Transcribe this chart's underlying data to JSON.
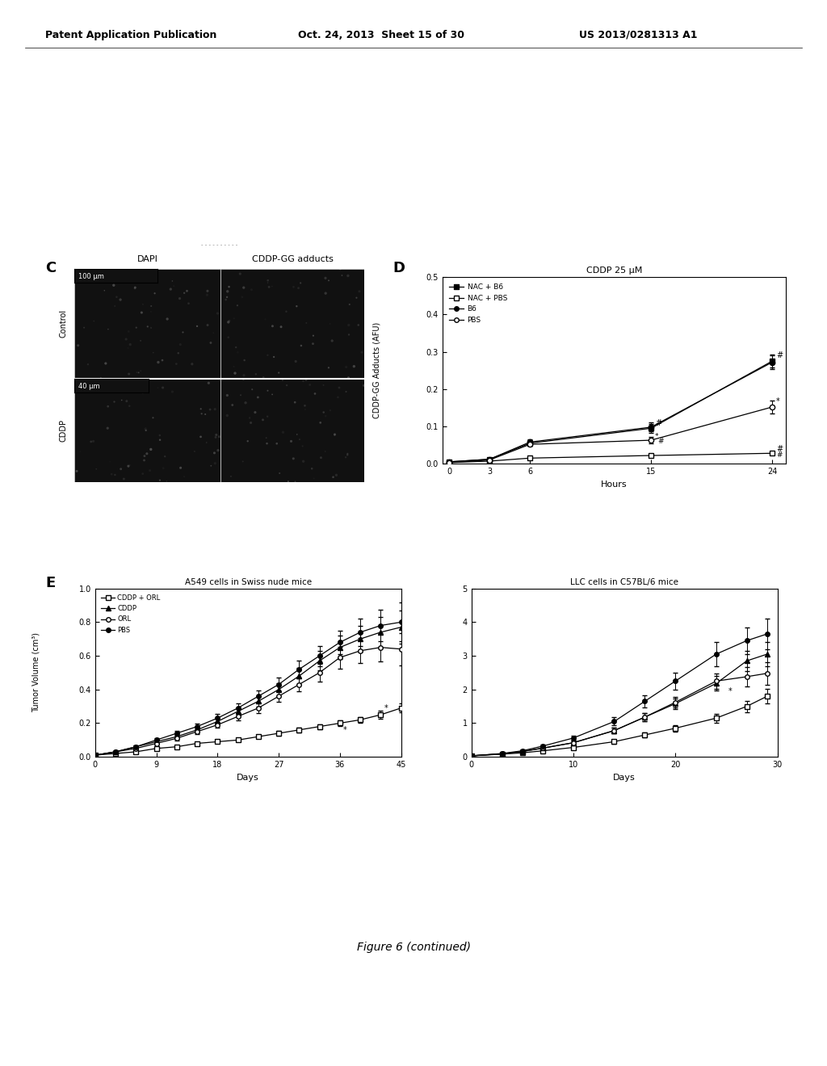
{
  "header_left": "Patent Application Publication",
  "header_mid": "Oct. 24, 2013  Sheet 15 of 30",
  "header_right": "US 2013/0281313 A1",
  "panel_D": {
    "title": "CDDP 25 μM",
    "xlabel": "Hours",
    "ylabel": "CDDP-GG Adducts (AFU)",
    "xlim": [
      -0.5,
      25
    ],
    "ylim": [
      0,
      0.5
    ],
    "xticks": [
      0,
      3,
      6,
      15,
      24
    ],
    "yticks": [
      0.0,
      0.1,
      0.2,
      0.3,
      0.4,
      0.5
    ],
    "series": {
      "NAC + B6": {
        "x": [
          0,
          3,
          6,
          15,
          24
        ],
        "y": [
          0.005,
          0.012,
          0.055,
          0.095,
          0.275
        ],
        "yerr": [
          0.002,
          0.003,
          0.008,
          0.012,
          0.018
        ],
        "marker": "s",
        "fillstyle": "full"
      },
      "NAC + PBS": {
        "x": [
          0,
          3,
          6,
          15,
          24
        ],
        "y": [
          0.003,
          0.007,
          0.015,
          0.022,
          0.028
        ],
        "yerr": [
          0.001,
          0.002,
          0.003,
          0.004,
          0.004
        ],
        "marker": "s",
        "fillstyle": "none"
      },
      "B6": {
        "x": [
          0,
          3,
          6,
          15,
          24
        ],
        "y": [
          0.005,
          0.012,
          0.058,
          0.098,
          0.272
        ],
        "yerr": [
          0.002,
          0.003,
          0.008,
          0.012,
          0.018
        ],
        "marker": "o",
        "fillstyle": "full"
      },
      "PBS": {
        "x": [
          0,
          3,
          6,
          15,
          24
        ],
        "y": [
          0.003,
          0.01,
          0.052,
          0.063,
          0.152
        ],
        "yerr": [
          0.001,
          0.002,
          0.005,
          0.008,
          0.018
        ],
        "marker": "o",
        "fillstyle": "none"
      }
    }
  },
  "panel_E_left": {
    "title": "A549 cells in Swiss nude mice",
    "xlabel": "Days",
    "ylabel": "Tumor Volume (cm³)",
    "xlim": [
      0,
      45
    ],
    "ylim": [
      0,
      1.0
    ],
    "xticks": [
      0,
      9,
      18,
      27,
      36,
      45
    ],
    "yticks": [
      0.0,
      0.2,
      0.4,
      0.6,
      0.8,
      1.0
    ],
    "series": {
      "CDDP + ORL": {
        "x": [
          0,
          3,
          6,
          9,
          12,
          15,
          18,
          21,
          24,
          27,
          30,
          33,
          36,
          39,
          42,
          45
        ],
        "y": [
          0.01,
          0.02,
          0.03,
          0.05,
          0.06,
          0.08,
          0.09,
          0.1,
          0.12,
          0.14,
          0.16,
          0.18,
          0.2,
          0.22,
          0.25,
          0.29
        ],
        "yerr": [
          0.003,
          0.004,
          0.005,
          0.006,
          0.007,
          0.008,
          0.009,
          0.01,
          0.011,
          0.013,
          0.014,
          0.015,
          0.016,
          0.018,
          0.022,
          0.027
        ],
        "marker": "s",
        "fillstyle": "none"
      },
      "CDDP": {
        "x": [
          0,
          3,
          6,
          9,
          12,
          15,
          18,
          21,
          24,
          27,
          30,
          33,
          36,
          39,
          42,
          45
        ],
        "y": [
          0.01,
          0.03,
          0.06,
          0.09,
          0.12,
          0.16,
          0.21,
          0.27,
          0.33,
          0.4,
          0.48,
          0.57,
          0.65,
          0.7,
          0.74,
          0.77
        ],
        "yerr": [
          0.003,
          0.005,
          0.007,
          0.01,
          0.012,
          0.015,
          0.02,
          0.025,
          0.03,
          0.038,
          0.048,
          0.058,
          0.068,
          0.078,
          0.09,
          0.1
        ],
        "marker": "^",
        "fillstyle": "full"
      },
      "ORL": {
        "x": [
          0,
          3,
          6,
          9,
          12,
          15,
          18,
          21,
          24,
          27,
          30,
          33,
          36,
          39,
          42,
          45
        ],
        "y": [
          0.01,
          0.03,
          0.05,
          0.08,
          0.11,
          0.15,
          0.19,
          0.24,
          0.29,
          0.36,
          0.43,
          0.5,
          0.59,
          0.63,
          0.65,
          0.64
        ],
        "yerr": [
          0.003,
          0.005,
          0.007,
          0.009,
          0.011,
          0.014,
          0.018,
          0.022,
          0.028,
          0.035,
          0.043,
          0.052,
          0.065,
          0.075,
          0.085,
          0.095
        ],
        "marker": "o",
        "fillstyle": "none"
      },
      "PBS": {
        "x": [
          0,
          3,
          6,
          9,
          12,
          15,
          18,
          21,
          24,
          27,
          30,
          33,
          36,
          39,
          42,
          45
        ],
        "y": [
          0.01,
          0.03,
          0.06,
          0.1,
          0.14,
          0.18,
          0.23,
          0.29,
          0.36,
          0.43,
          0.52,
          0.6,
          0.68,
          0.74,
          0.78,
          0.8
        ],
        "yerr": [
          0.003,
          0.005,
          0.008,
          0.011,
          0.014,
          0.018,
          0.023,
          0.029,
          0.036,
          0.043,
          0.052,
          0.06,
          0.07,
          0.08,
          0.095,
          0.115
        ],
        "marker": "o",
        "fillstyle": "full"
      }
    }
  },
  "panel_E_right": {
    "title": "LLC cells in C57BL/6 mice",
    "xlabel": "Days",
    "ylabel": "",
    "xlim": [
      0,
      30
    ],
    "ylim": [
      0,
      5.0
    ],
    "xticks": [
      0,
      10,
      20,
      30
    ],
    "yticks": [
      0.0,
      1.0,
      2.0,
      3.0,
      4.0,
      5.0
    ],
    "series": {
      "CDDP + ORL": {
        "x": [
          0,
          3,
          5,
          7,
          10,
          14,
          17,
          20,
          24,
          27,
          29
        ],
        "y": [
          0.03,
          0.08,
          0.12,
          0.18,
          0.28,
          0.45,
          0.65,
          0.85,
          1.15,
          1.5,
          1.8
        ],
        "yerr": [
          0.01,
          0.02,
          0.02,
          0.03,
          0.04,
          0.06,
          0.08,
          0.1,
          0.13,
          0.17,
          0.22
        ],
        "marker": "s",
        "fillstyle": "none"
      },
      "CDDP": {
        "x": [
          0,
          3,
          5,
          7,
          10,
          14,
          17,
          20,
          24,
          27,
          29
        ],
        "y": [
          0.03,
          0.09,
          0.16,
          0.26,
          0.42,
          0.78,
          1.18,
          1.58,
          2.18,
          2.85,
          3.05
        ],
        "yerr": [
          0.01,
          0.02,
          0.03,
          0.04,
          0.06,
          0.09,
          0.12,
          0.16,
          0.22,
          0.3,
          0.35
        ],
        "marker": "^",
        "fillstyle": "full"
      },
      "ORL": {
        "x": [
          0,
          3,
          5,
          7,
          10,
          14,
          17,
          20,
          24,
          27,
          29
        ],
        "y": [
          0.03,
          0.09,
          0.16,
          0.26,
          0.42,
          0.78,
          1.18,
          1.62,
          2.25,
          2.38,
          2.48
        ],
        "yerr": [
          0.01,
          0.02,
          0.03,
          0.04,
          0.06,
          0.09,
          0.12,
          0.16,
          0.22,
          0.28,
          0.33
        ],
        "marker": "o",
        "fillstyle": "none"
      },
      "PBS": {
        "x": [
          0,
          3,
          5,
          7,
          10,
          14,
          17,
          20,
          24,
          27,
          29
        ],
        "y": [
          0.03,
          0.1,
          0.18,
          0.32,
          0.56,
          1.05,
          1.65,
          2.25,
          3.05,
          3.45,
          3.65
        ],
        "yerr": [
          0.01,
          0.02,
          0.04,
          0.05,
          0.08,
          0.12,
          0.18,
          0.25,
          0.35,
          0.4,
          0.45
        ],
        "marker": "o",
        "fillstyle": "full"
      }
    }
  },
  "figure_caption": "Figure 6 (continued)"
}
